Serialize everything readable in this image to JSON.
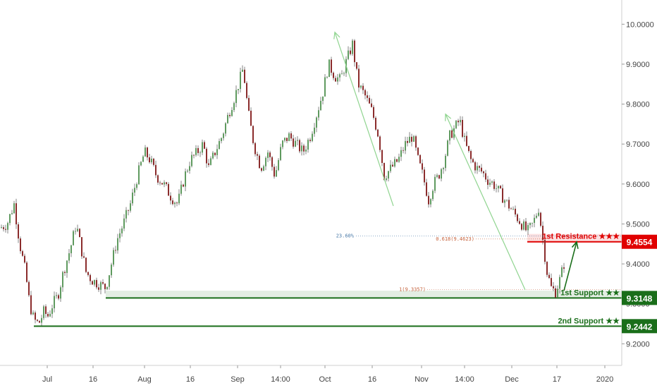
{
  "chart_data": {
    "type": "candlestick",
    "ylim": [
      9.16,
      10.05
    ],
    "y_ticks": [
      "10.0000",
      "9.9000",
      "9.8000",
      "9.7000",
      "9.6000",
      "9.5000",
      "9.4000",
      "9.3000",
      "9.2000"
    ],
    "x_ticks": [
      "Jul",
      "16",
      "Aug",
      "16",
      "Sep",
      "14:00",
      "Oct",
      "16",
      "Nov",
      "14:00",
      "Dec",
      "17",
      "2020"
    ],
    "price_path": [
      [
        0,
        9.49
      ],
      [
        10,
        9.5
      ],
      [
        20,
        9.55
      ],
      [
        28,
        9.45
      ],
      [
        36,
        9.38
      ],
      [
        42,
        9.3
      ],
      [
        48,
        9.26
      ],
      [
        55,
        9.25
      ],
      [
        62,
        9.28
      ],
      [
        68,
        9.27
      ],
      [
        75,
        9.3
      ],
      [
        82,
        9.32
      ],
      [
        90,
        9.38
      ],
      [
        100,
        9.44
      ],
      [
        108,
        9.5
      ],
      [
        115,
        9.44
      ],
      [
        122,
        9.38
      ],
      [
        130,
        9.36
      ],
      [
        140,
        9.35
      ],
      [
        150,
        9.34
      ],
      [
        158,
        9.4
      ],
      [
        166,
        9.46
      ],
      [
        175,
        9.5
      ],
      [
        185,
        9.55
      ],
      [
        195,
        9.62
      ],
      [
        205,
        9.68
      ],
      [
        213,
        9.66
      ],
      [
        222,
        9.62
      ],
      [
        232,
        9.6
      ],
      [
        242,
        9.57
      ],
      [
        252,
        9.55
      ],
      [
        262,
        9.62
      ],
      [
        270,
        9.66
      ],
      [
        280,
        9.68
      ],
      [
        288,
        9.7
      ],
      [
        296,
        9.64
      ],
      [
        305,
        9.68
      ],
      [
        315,
        9.72
      ],
      [
        325,
        9.78
      ],
      [
        335,
        9.83
      ],
      [
        345,
        9.89
      ],
      [
        352,
        9.78
      ],
      [
        360,
        9.7
      ],
      [
        370,
        9.64
      ],
      [
        380,
        9.68
      ],
      [
        390,
        9.62
      ],
      [
        400,
        9.7
      ],
      [
        410,
        9.72
      ],
      [
        420,
        9.7
      ],
      [
        430,
        9.68
      ],
      [
        440,
        9.72
      ],
      [
        450,
        9.78
      ],
      [
        458,
        9.83
      ],
      [
        466,
        9.9
      ],
      [
        475,
        9.87
      ],
      [
        483,
        9.86
      ],
      [
        490,
        9.9
      ],
      [
        500,
        9.95
      ],
      [
        508,
        9.85
      ],
      [
        518,
        9.82
      ],
      [
        528,
        9.78
      ],
      [
        537,
        9.72
      ],
      [
        545,
        9.62
      ],
      [
        555,
        9.64
      ],
      [
        565,
        9.66
      ],
      [
        575,
        9.7
      ],
      [
        585,
        9.72
      ],
      [
        593,
        9.66
      ],
      [
        600,
        9.62
      ],
      [
        608,
        9.56
      ],
      [
        615,
        9.6
      ],
      [
        622,
        9.62
      ],
      [
        630,
        9.66
      ],
      [
        638,
        9.72
      ],
      [
        645,
        9.74
      ],
      [
        652,
        9.76
      ],
      [
        660,
        9.7
      ],
      [
        668,
        9.66
      ],
      [
        676,
        9.64
      ],
      [
        684,
        9.63
      ],
      [
        692,
        9.61
      ],
      [
        700,
        9.6
      ],
      [
        708,
        9.58
      ],
      [
        716,
        9.56
      ],
      [
        724,
        9.54
      ],
      [
        732,
        9.52
      ],
      [
        740,
        9.5
      ],
      [
        748,
        9.48
      ],
      [
        756,
        9.5
      ],
      [
        764,
        9.54
      ],
      [
        770,
        9.46
      ],
      [
        776,
        9.38
      ],
      [
        782,
        9.34
      ],
      [
        788,
        9.33
      ],
      [
        794,
        9.36
      ],
      [
        800,
        9.4
      ]
    ],
    "price_line_range_x": [
      0,
      800
    ],
    "levels": [
      {
        "name": "1st Resistance ★★★",
        "value": 9.4554,
        "tag": "9.4554",
        "color": "#e00000",
        "band": [
          9.4554,
          9.475
        ],
        "x_start": 748
      },
      {
        "name": "1st Support ★★",
        "value": 9.3148,
        "tag": "9.3148",
        "color": "#1a6e1a",
        "band": [
          9.3148,
          9.333
        ],
        "x_start": 150
      },
      {
        "name": "2nd Support ★★",
        "value": 9.2442,
        "tag": "9.2442",
        "color": "#1a6e1a",
        "band": null,
        "x_start": 48
      }
    ],
    "fib_labels": {
      "pct": "23.60%",
      "pct_value": 9.47,
      "ratio_618": "0.618(9.4623)",
      "ratio_618_value": 9.4623,
      "ratio_1": "1(9.3357)",
      "ratio_1_value": 9.3357
    },
    "projection_arrow": {
      "from": [
        800,
        9.333
      ],
      "to": [
        818,
        9.455
      ]
    },
    "swing_arrows": [
      {
        "from": [
          558,
          9.545
        ],
        "to": [
          475,
          9.98
        ]
      },
      {
        "from": [
          745,
          9.335
        ],
        "to": [
          632,
          9.775
        ]
      }
    ],
    "grid": false,
    "legend": "none"
  }
}
